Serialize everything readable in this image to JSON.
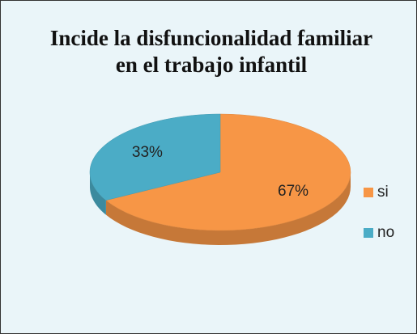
{
  "chart_data": {
    "type": "pie",
    "title": "Incide la disfuncionalidad familiar en el trabajo infantil",
    "categories": [
      "si",
      "no"
    ],
    "values": [
      67,
      33
    ],
    "value_labels": [
      "67%",
      "33%"
    ],
    "colors": [
      "#f79646",
      "#4bacc6"
    ],
    "legend": "right"
  }
}
